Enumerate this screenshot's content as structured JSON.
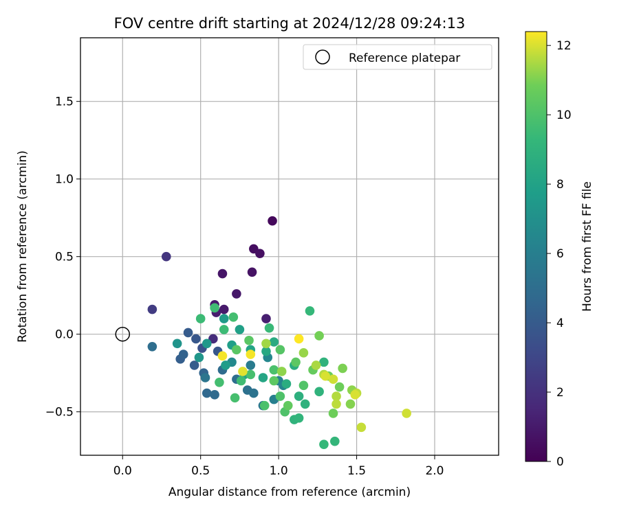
{
  "chart_data": {
    "type": "scatter",
    "title": "FOV centre drift starting at 2024/12/28 09:24:13",
    "xlabel": "Angular distance from reference (arcmin)",
    "ylabel": "Rotation from reference (arcmin)",
    "xlim": [
      -0.27,
      2.41
    ],
    "ylim": [
      -0.78,
      1.91
    ],
    "xticks": [
      0.0,
      0.5,
      1.0,
      1.5,
      2.0
    ],
    "xtick_labels": [
      "0.0",
      "0.5",
      "1.0",
      "1.5",
      "2.0"
    ],
    "yticks": [
      -0.5,
      0.0,
      0.5,
      1.0,
      1.5
    ],
    "ytick_labels": [
      "−0.5",
      "0.0",
      "0.5",
      "1.0",
      "1.5"
    ],
    "grid": true,
    "legend": {
      "placement": "top-right",
      "entries": [
        "Reference platepar"
      ]
    },
    "reference_point": {
      "x": 0.0,
      "y": 0.0
    },
    "colorbar": {
      "label": "Hours from first FF file",
      "colormap": "viridis",
      "range": [
        0,
        12.4
      ],
      "ticks": [
        0,
        2,
        4,
        6,
        8,
        10,
        12
      ],
      "tick_labels": [
        "0",
        "2",
        "4",
        "6",
        "8",
        "10",
        "12"
      ]
    },
    "points": [
      {
        "x": 0.96,
        "y": 0.73,
        "c": 0.3
      },
      {
        "x": 0.84,
        "y": 0.55,
        "c": 0.5
      },
      {
        "x": 0.88,
        "y": 0.52,
        "c": 0.6
      },
      {
        "x": 0.83,
        "y": 0.4,
        "c": 0.7
      },
      {
        "x": 0.64,
        "y": 0.39,
        "c": 0.8
      },
      {
        "x": 0.73,
        "y": 0.26,
        "c": 0.9
      },
      {
        "x": 0.59,
        "y": 0.19,
        "c": 1.0
      },
      {
        "x": 0.65,
        "y": 0.16,
        "c": 1.0
      },
      {
        "x": 0.6,
        "y": 0.14,
        "c": 1.1
      },
      {
        "x": 0.92,
        "y": 0.1,
        "c": 1.2
      },
      {
        "x": 0.58,
        "y": -0.03,
        "c": 1.8
      },
      {
        "x": 0.28,
        "y": 0.5,
        "c": 2.2
      },
      {
        "x": 0.19,
        "y": 0.16,
        "c": 2.5
      },
      {
        "x": 0.51,
        "y": -0.09,
        "c": 3.5
      },
      {
        "x": 0.47,
        "y": -0.03,
        "c": 3.8
      },
      {
        "x": 0.61,
        "y": -0.11,
        "c": 3.8
      },
      {
        "x": 0.42,
        "y": 0.01,
        "c": 4.0
      },
      {
        "x": 0.46,
        "y": -0.2,
        "c": 4.1
      },
      {
        "x": 0.37,
        "y": -0.16,
        "c": 4.2
      },
      {
        "x": 0.39,
        "y": -0.13,
        "c": 4.4
      },
      {
        "x": 0.52,
        "y": -0.25,
        "c": 4.5
      },
      {
        "x": 0.54,
        "y": -0.38,
        "c": 4.7
      },
      {
        "x": 0.59,
        "y": -0.39,
        "c": 4.8
      },
      {
        "x": 0.64,
        "y": -0.23,
        "c": 4.9
      },
      {
        "x": 0.19,
        "y": -0.08,
        "c": 5.0
      },
      {
        "x": 0.73,
        "y": -0.29,
        "c": 5.0
      },
      {
        "x": 0.8,
        "y": -0.36,
        "c": 5.2
      },
      {
        "x": 0.84,
        "y": -0.38,
        "c": 5.3
      },
      {
        "x": 0.53,
        "y": -0.28,
        "c": 5.4
      },
      {
        "x": 0.9,
        "y": -0.46,
        "c": 5.5
      },
      {
        "x": 0.82,
        "y": -0.2,
        "c": 5.8
      },
      {
        "x": 0.97,
        "y": -0.42,
        "c": 6.0
      },
      {
        "x": 1.0,
        "y": -0.3,
        "c": 6.2
      },
      {
        "x": 1.03,
        "y": -0.33,
        "c": 6.3
      },
      {
        "x": 0.93,
        "y": -0.15,
        "c": 6.5
      },
      {
        "x": 0.7,
        "y": -0.18,
        "c": 6.6
      },
      {
        "x": 0.35,
        "y": -0.06,
        "c": 7.2
      },
      {
        "x": 0.49,
        "y": -0.15,
        "c": 7.3
      },
      {
        "x": 0.54,
        "y": -0.06,
        "c": 7.4
      },
      {
        "x": 0.65,
        "y": 0.1,
        "c": 7.6
      },
      {
        "x": 0.66,
        "y": -0.2,
        "c": 7.7
      },
      {
        "x": 0.7,
        "y": -0.07,
        "c": 7.8
      },
      {
        "x": 0.75,
        "y": 0.03,
        "c": 7.9
      },
      {
        "x": 0.78,
        "y": -0.26,
        "c": 8.0
      },
      {
        "x": 0.82,
        "y": -0.1,
        "c": 8.1
      },
      {
        "x": 0.9,
        "y": -0.28,
        "c": 8.2
      },
      {
        "x": 0.92,
        "y": -0.11,
        "c": 8.4
      },
      {
        "x": 0.97,
        "y": -0.05,
        "c": 8.5
      },
      {
        "x": 1.05,
        "y": -0.32,
        "c": 8.6
      },
      {
        "x": 1.1,
        "y": -0.2,
        "c": 8.7
      },
      {
        "x": 1.13,
        "y": -0.4,
        "c": 8.8
      },
      {
        "x": 1.17,
        "y": -0.45,
        "c": 8.9
      },
      {
        "x": 1.29,
        "y": -0.18,
        "c": 9.0
      },
      {
        "x": 1.26,
        "y": -0.37,
        "c": 9.0
      },
      {
        "x": 1.1,
        "y": -0.55,
        "c": 9.0
      },
      {
        "x": 1.13,
        "y": -0.54,
        "c": 9.1
      },
      {
        "x": 1.36,
        "y": -0.69,
        "c": 9.2
      },
      {
        "x": 1.29,
        "y": -0.71,
        "c": 9.3
      },
      {
        "x": 1.2,
        "y": 0.15,
        "c": 9.3
      },
      {
        "x": 0.94,
        "y": 0.04,
        "c": 9.4
      },
      {
        "x": 0.65,
        "y": 0.03,
        "c": 9.5
      },
      {
        "x": 0.5,
        "y": 0.1,
        "c": 9.5
      },
      {
        "x": 0.59,
        "y": 0.17,
        "c": 9.6
      },
      {
        "x": 0.71,
        "y": 0.11,
        "c": 9.7
      },
      {
        "x": 0.76,
        "y": -0.3,
        "c": 9.6
      },
      {
        "x": 0.62,
        "y": -0.31,
        "c": 9.7
      },
      {
        "x": 0.72,
        "y": -0.41,
        "c": 9.8
      },
      {
        "x": 0.82,
        "y": -0.26,
        "c": 9.8
      },
      {
        "x": 0.97,
        "y": -0.23,
        "c": 9.9
      },
      {
        "x": 0.91,
        "y": -0.46,
        "c": 9.9
      },
      {
        "x": 1.01,
        "y": -0.4,
        "c": 10.0
      },
      {
        "x": 1.04,
        "y": -0.5,
        "c": 10.0
      },
      {
        "x": 1.16,
        "y": -0.33,
        "c": 10.1
      },
      {
        "x": 1.01,
        "y": -0.1,
        "c": 10.2
      },
      {
        "x": 0.81,
        "y": -0.04,
        "c": 10.3
      },
      {
        "x": 0.73,
        "y": -0.1,
        "c": 10.3
      },
      {
        "x": 0.97,
        "y": -0.3,
        "c": 10.4
      },
      {
        "x": 1.11,
        "y": -0.18,
        "c": 10.4
      },
      {
        "x": 1.06,
        "y": -0.46,
        "c": 10.5
      },
      {
        "x": 1.22,
        "y": -0.23,
        "c": 10.6
      },
      {
        "x": 1.32,
        "y": -0.27,
        "c": 10.7
      },
      {
        "x": 1.39,
        "y": -0.34,
        "c": 10.8
      },
      {
        "x": 1.35,
        "y": -0.51,
        "c": 10.8
      },
      {
        "x": 1.26,
        "y": -0.01,
        "c": 10.9
      },
      {
        "x": 1.41,
        "y": -0.22,
        "c": 11.0
      },
      {
        "x": 1.46,
        "y": -0.45,
        "c": 11.1
      },
      {
        "x": 1.47,
        "y": -0.36,
        "c": 11.2
      },
      {
        "x": 1.02,
        "y": -0.24,
        "c": 11.2
      },
      {
        "x": 1.16,
        "y": -0.12,
        "c": 11.3
      },
      {
        "x": 0.92,
        "y": -0.06,
        "c": 11.4
      },
      {
        "x": 1.24,
        "y": -0.2,
        "c": 11.5
      },
      {
        "x": 1.29,
        "y": -0.26,
        "c": 11.6
      },
      {
        "x": 1.37,
        "y": -0.4,
        "c": 11.6
      },
      {
        "x": 1.37,
        "y": -0.45,
        "c": 11.7
      },
      {
        "x": 1.5,
        "y": -0.38,
        "c": 11.7
      },
      {
        "x": 1.53,
        "y": -0.6,
        "c": 11.8
      },
      {
        "x": 1.82,
        "y": -0.51,
        "c": 11.9
      },
      {
        "x": 1.35,
        "y": -0.29,
        "c": 11.9
      },
      {
        "x": 1.3,
        "y": -0.27,
        "c": 12.0
      },
      {
        "x": 1.49,
        "y": -0.39,
        "c": 12.0
      },
      {
        "x": 0.77,
        "y": -0.24,
        "c": 12.1
      },
      {
        "x": 0.82,
        "y": -0.13,
        "c": 12.3
      },
      {
        "x": 0.64,
        "y": -0.14,
        "c": 12.3
      },
      {
        "x": 1.13,
        "y": -0.03,
        "c": 12.4
      }
    ]
  }
}
